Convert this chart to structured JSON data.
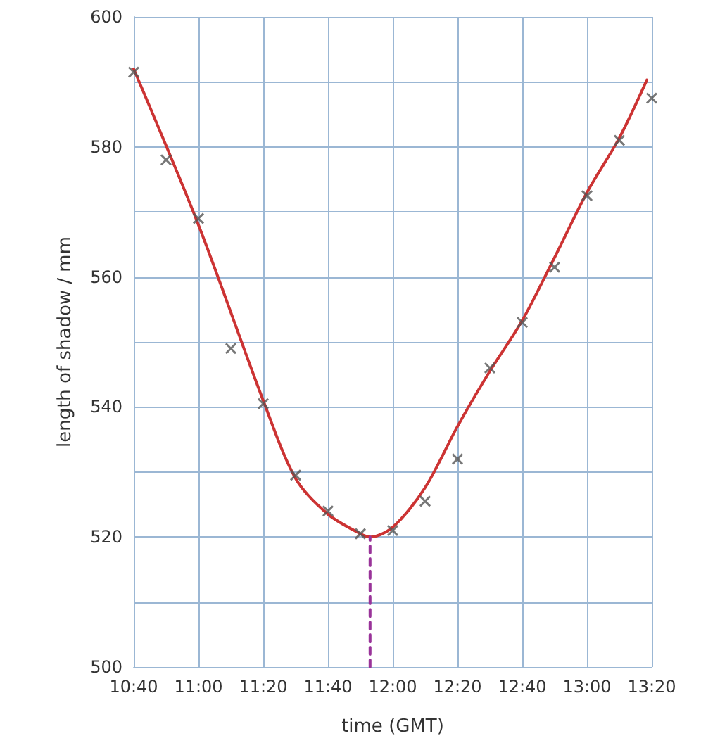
{
  "chart_data": {
    "type": "scatter",
    "xlabel": "time (GMT)",
    "ylabel": "length of shadow / mm",
    "xlim": [
      10.6667,
      13.3333
    ],
    "xticks": [
      {
        "value": 10.6667,
        "label": "10:40"
      },
      {
        "value": 11,
        "label": "11:00"
      },
      {
        "value": 11.3333,
        "label": "11:20"
      },
      {
        "value": 11.6667,
        "label": "11:40"
      },
      {
        "value": 12,
        "label": "12:00"
      },
      {
        "value": 12.3333,
        "label": "12:20"
      },
      {
        "value": 12.6667,
        "label": "12:40"
      },
      {
        "value": 13,
        "label": "13:00"
      },
      {
        "value": 13.3333,
        "label": "13:20"
      }
    ],
    "ylim": [
      500,
      600
    ],
    "yticks": [
      500,
      {
        "value": 510,
        "label": null
      },
      520,
      {
        "value": 530,
        "label": null
      },
      540,
      {
        "value": 550,
        "label": null
      },
      560,
      {
        "value": 570,
        "label": null
      },
      580,
      {
        "value": 590,
        "label": null
      },
      600
    ],
    "grid": true,
    "marker": "cross",
    "series": [
      {
        "color": "#555555",
        "x": [
          10.6667,
          10.8333,
          11,
          11.1667,
          11.3333,
          11.5,
          11.6667,
          11.8333,
          12,
          12.1667,
          12.3333,
          12.5,
          12.6667,
          12.8333,
          13,
          13.1667,
          13.3333
        ],
        "values": [
          591.5,
          578,
          569,
          549,
          540.5,
          529.5,
          524,
          520.5,
          521,
          525.5,
          532,
          546,
          553,
          561.5,
          572.5,
          581,
          587.5
        ]
      },
      {
        "type": "line",
        "color": "#cc3333",
        "marker": "none",
        "line_style": "solid",
        "x": [
          10.6667,
          11,
          11.3333,
          11.5,
          11.6667,
          11.8333,
          11.8833,
          12,
          12.1667,
          12.3333,
          12.5,
          12.6667,
          12.8333,
          13,
          13.1667,
          13.3083
        ],
        "values": [
          592,
          568,
          541,
          529,
          523.5,
          520.5,
          520,
          521.5,
          527.6,
          537,
          545.5,
          553.3,
          563,
          573,
          581.4,
          590.3
        ]
      },
      {
        "type": "line",
        "color": "#993399",
        "marker": "none",
        "line_style": "dashed",
        "x": [
          11.8833,
          11.8833
        ],
        "values": [
          500,
          520
        ]
      }
    ]
  }
}
